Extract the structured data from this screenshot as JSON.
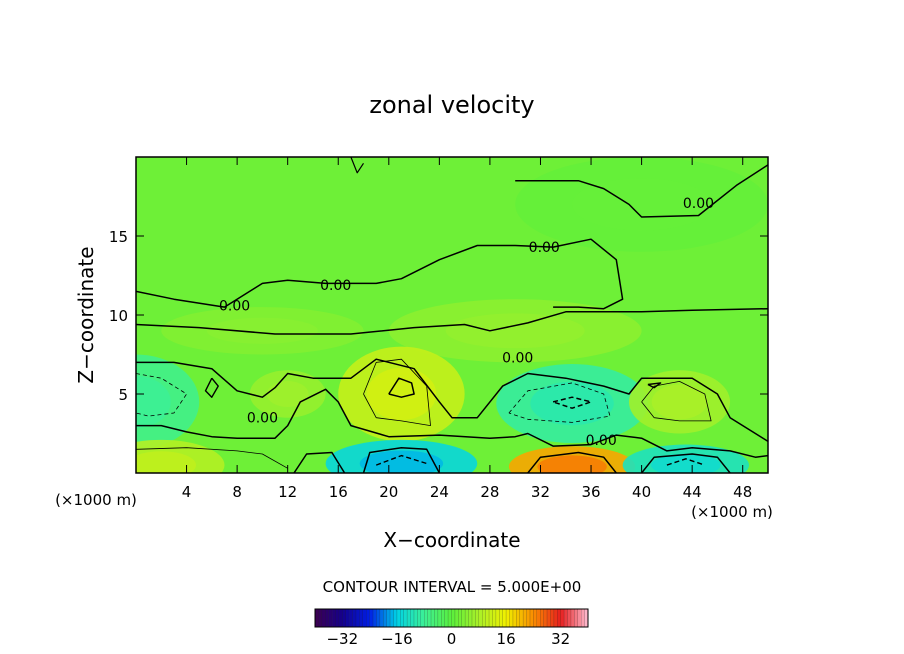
{
  "chart_data": {
    "type": "heatmap",
    "title": "zonal velocity",
    "xlabel": "X−coordinate",
    "ylabel": "Z−coordinate",
    "x_unit_left": "(×1000 m)",
    "x_unit_right": "(×1000 m)",
    "xlim": [
      0,
      50
    ],
    "ylim": [
      0,
      20
    ],
    "x_ticks": [
      4,
      8,
      12,
      16,
      20,
      24,
      28,
      32,
      36,
      40,
      44,
      48
    ],
    "y_ticks": [
      5,
      10,
      15
    ],
    "contour_labels": [
      {
        "text": "0.00",
        "x": 44.5,
        "y": 17.1
      },
      {
        "text": "0.00",
        "x": 32.3,
        "y": 14.3
      },
      {
        "text": "0.00",
        "x": 15.8,
        "y": 11.9
      },
      {
        "text": "0.00",
        "x": 7.8,
        "y": 10.6
      },
      {
        "text": "0.00",
        "x": 30.2,
        "y": 7.3
      },
      {
        "text": "0.00",
        "x": 10.0,
        "y": 3.5
      },
      {
        "text": "0.00",
        "x": 36.8,
        "y": 2.1
      }
    ],
    "contour_interval_label": "CONTOUR INTERVAL = 5.000E+00",
    "colorbar": {
      "range": [
        -40,
        40
      ],
      "ticks": [
        -32,
        -16,
        0,
        16,
        32
      ],
      "tick_labels": [
        "−32",
        "−16",
        "0",
        "16",
        "32"
      ]
    },
    "features": [
      {
        "kind": "min",
        "x": 3.0,
        "y": 4.8,
        "value": -8
      },
      {
        "kind": "max",
        "x": 21.0,
        "y": 5.3,
        "value": 12
      },
      {
        "kind": "min",
        "x": 34.5,
        "y": 4.4,
        "value": -12
      },
      {
        "kind": "max",
        "x": 43.0,
        "y": 4.5,
        "value": 6
      },
      {
        "kind": "min",
        "x": 21.0,
        "y": 0.6,
        "value": -17
      },
      {
        "kind": "max",
        "x": 34.5,
        "y": 0.4,
        "value": 24
      },
      {
        "kind": "min",
        "x": 43.5,
        "y": 0.5,
        "value": -14
      },
      {
        "kind": "max",
        "x": 1.5,
        "y": 0.5,
        "value": 8
      }
    ]
  }
}
